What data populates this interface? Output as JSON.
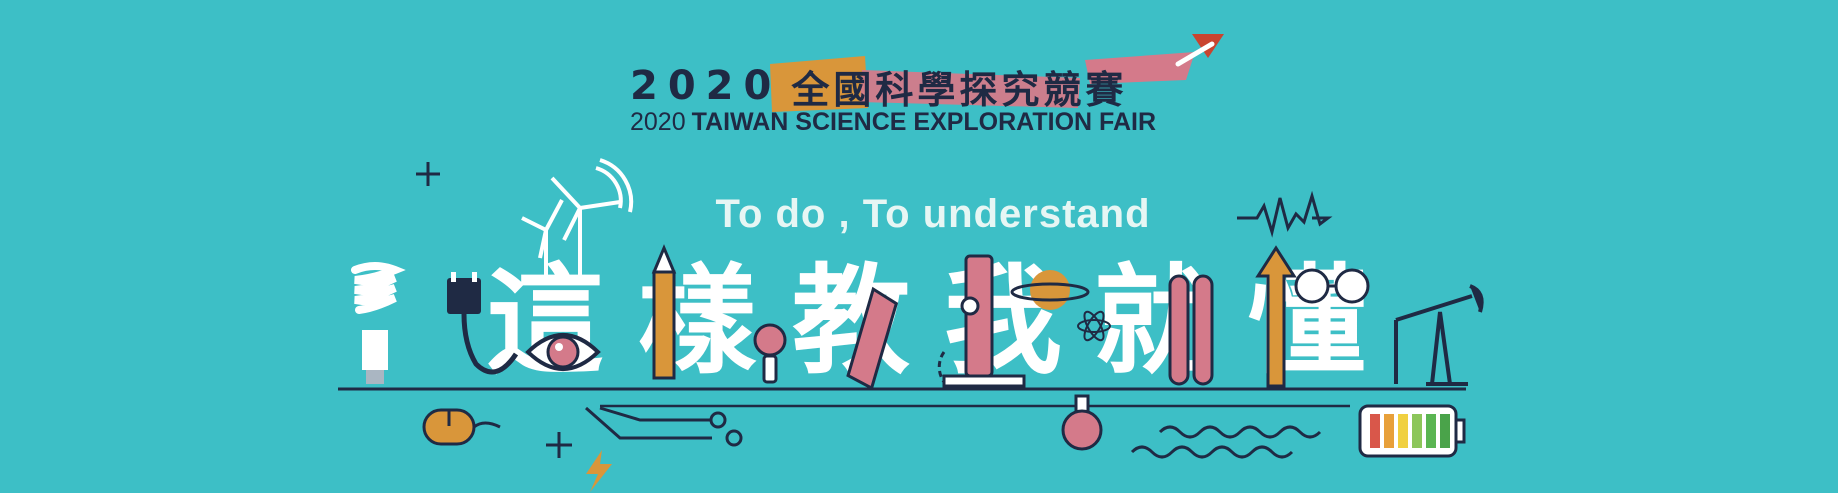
{
  "banner": {
    "year": "2020",
    "title_zh": "全國科學探究競賽",
    "title_en_year": "2020",
    "title_en": "TAIWAN SCIENCE EXPLORATION FAIR",
    "tagline": "To do , To understand",
    "headline_chars": [
      "這",
      "樣",
      "教",
      "我",
      "就",
      "懂"
    ]
  },
  "colors": {
    "background": "#3dbfc6",
    "navy": "#1f2a44",
    "orange": "#d9963a",
    "pink": "#d47a8a",
    "white": "#ffffff"
  },
  "icons": [
    "light-bulb-icon",
    "plug-icon",
    "wind-turbine-icon",
    "eye-icon",
    "pencil-icon",
    "magnifier-icon",
    "ruler-icon",
    "microscope-icon",
    "planet-icon",
    "atom-icon",
    "test-tube-icon",
    "arrow-up-icon",
    "glasses-icon",
    "oil-pump-icon",
    "mouse-icon",
    "circuit-icon",
    "lightning-icon",
    "flask-icon",
    "wave-icon",
    "battery-icon",
    "plus-icon",
    "heartbeat-icon",
    "paper-plane-icon"
  ]
}
